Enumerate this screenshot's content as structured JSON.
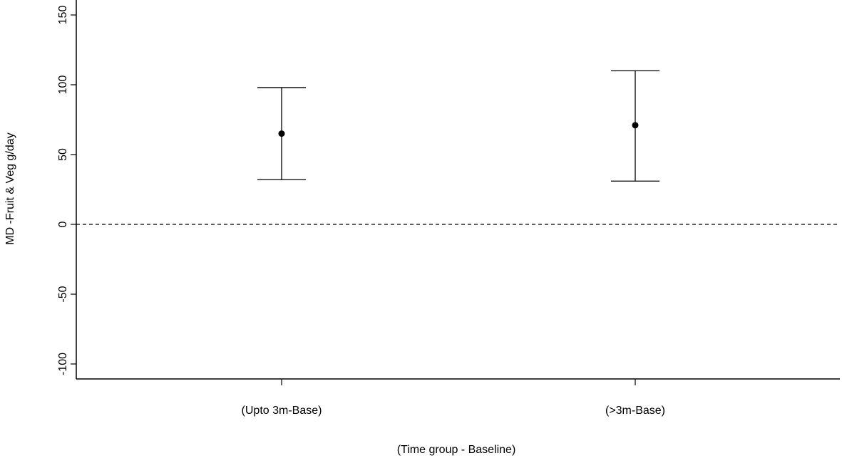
{
  "chart_data": {
    "type": "scatter",
    "title": "",
    "xlabel": "(Time group - Baseline)",
    "ylabel": "MD -Fruit & Veg g/day",
    "ylim": [
      -110,
      150
    ],
    "yticks": [
      -100,
      -50,
      0,
      50,
      100,
      150
    ],
    "categories": [
      "(Upto 3m-Base)",
      "(>3m-Base)"
    ],
    "points": [
      {
        "category": "(Upto 3m-Base)",
        "mean": 65,
        "lower": 32,
        "upper": 98
      },
      {
        "category": "(>3m-Base)",
        "mean": 71,
        "lower": 31,
        "upper": 110
      }
    ],
    "reference_line": {
      "y": 0,
      "style": "dashed"
    },
    "grid": false,
    "legend": "none"
  }
}
